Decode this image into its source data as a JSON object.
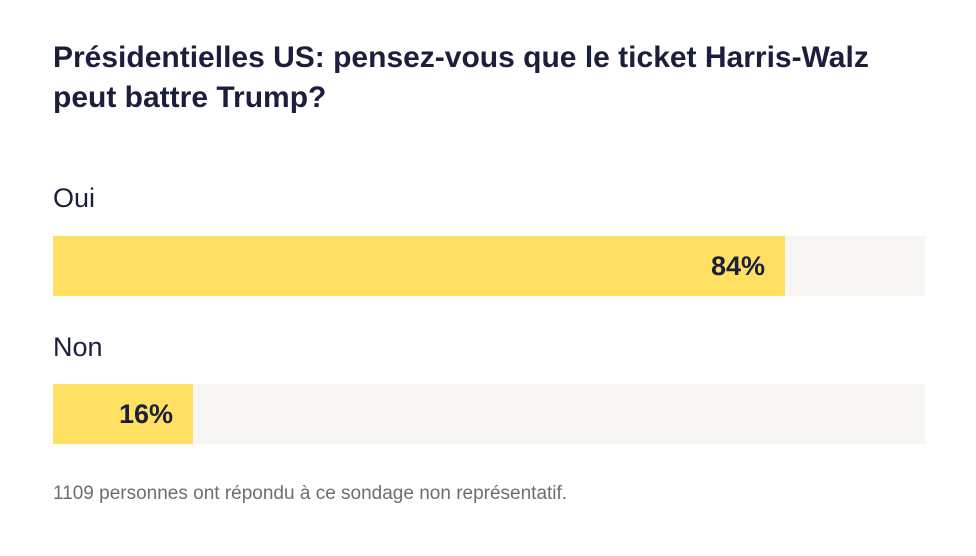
{
  "chart_data": {
    "type": "bar",
    "title": "Présidentielles US: pensez-vous que le ticket Harris-Walz peut battre Trump?",
    "categories": [
      "Oui",
      "Non"
    ],
    "values": [
      84,
      16
    ],
    "value_labels": [
      "84%",
      "16%"
    ],
    "xlim": [
      0,
      100
    ],
    "orientation": "horizontal",
    "colors": {
      "fill": "#ffe062",
      "track": "#f7f6f3",
      "text": "#1b1f3b"
    }
  },
  "footnote": "1109 personnes ont répondu à ce sondage non représentatif."
}
